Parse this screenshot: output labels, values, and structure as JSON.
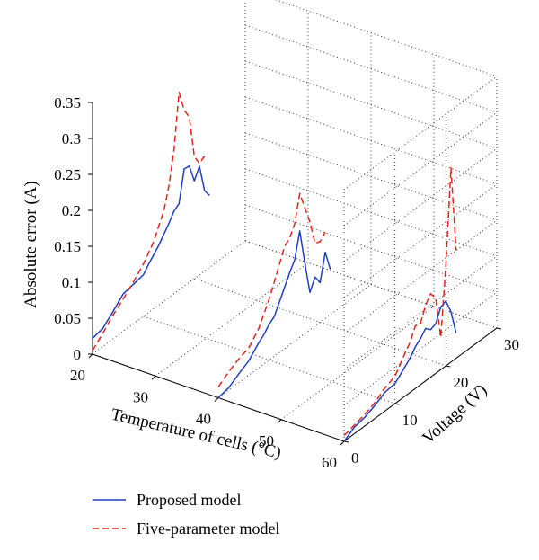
{
  "chart_data": {
    "type": "line3d",
    "title": "",
    "xlabel": "Temperature of cells (°C)",
    "ylabel": "Voltage (V)",
    "zlabel": "Absolute error (A)",
    "xlim": [
      20,
      60
    ],
    "ylim": [
      0,
      30
    ],
    "zlim": [
      0,
      0.35
    ],
    "xticks": [
      "20",
      "30",
      "40",
      "50",
      "60"
    ],
    "yticks": [
      "0",
      "10",
      "20",
      "30"
    ],
    "zticks": [
      "0",
      "0.05",
      "0.1",
      "0.15",
      "0.2",
      "0.25",
      "0.3",
      "0.35"
    ],
    "grid": true,
    "legend_position": "bottom-left",
    "series": [
      {
        "name": "Proposed model",
        "color": "#1f3fbf",
        "style": "solid",
        "groups": [
          {
            "temperature": 20,
            "points": [
              [
                0,
                0.022
              ],
              [
                2,
                0.025
              ],
              [
                4,
                0.038
              ],
              [
                6,
                0.052
              ],
              [
                8,
                0.055
              ],
              [
                10,
                0.058
              ],
              [
                11,
                0.067
              ],
              [
                12,
                0.075
              ],
              [
                13,
                0.083
              ],
              [
                14,
                0.093
              ],
              [
                15,
                0.103
              ],
              [
                16,
                0.115
              ],
              [
                17,
                0.12
              ],
              [
                18,
                0.163
              ],
              [
                19,
                0.162
              ],
              [
                20,
                0.136
              ],
              [
                21,
                0.151
              ],
              [
                22,
                0.112
              ],
              [
                23,
                0.1
              ]
            ]
          },
          {
            "temperature": 40,
            "points": [
              [
                0,
                0.0
              ],
              [
                2,
                0.003
              ],
              [
                4,
                0.012
              ],
              [
                6,
                0.02
              ],
              [
                8,
                0.035
              ],
              [
                9,
                0.041
              ],
              [
                10,
                0.05
              ],
              [
                11,
                0.055
              ],
              [
                12,
                0.07
              ],
              [
                13,
                0.085
              ],
              [
                14,
                0.1
              ],
              [
                15,
                0.113
              ],
              [
                16,
                0.148
              ],
              [
                17,
                0.098
              ],
              [
                18,
                0.052
              ],
              [
                19,
                0.068
              ],
              [
                20,
                0.055
              ],
              [
                21,
                0.092
              ],
              [
                22,
                0.063
              ]
            ]
          },
          {
            "temperature": 60,
            "points": [
              [
                0,
                0.0
              ],
              [
                2,
                0.009
              ],
              [
                4,
                0.012
              ],
              [
                6,
                0.018
              ],
              [
                8,
                0.026
              ],
              [
                10,
                0.028
              ],
              [
                12,
                0.041
              ],
              [
                13,
                0.048
              ],
              [
                14,
                0.058
              ],
              [
                15,
                0.064
              ],
              [
                16,
                0.073
              ],
              [
                17,
                0.066
              ],
              [
                18,
                0.069
              ],
              [
                19,
                0.087
              ],
              [
                20,
                0.09
              ],
              [
                21,
                0.07
              ],
              [
                22,
                0.035
              ]
            ]
          }
        ]
      },
      {
        "name": "Five-parameter model",
        "color": "#e2231a",
        "style": "dashed",
        "groups": [
          {
            "temperature": 20,
            "points": [
              [
                0,
                0.005
              ],
              [
                2,
                0.018
              ],
              [
                4,
                0.033
              ],
              [
                6,
                0.045
              ],
              [
                8,
                0.058
              ],
              [
                10,
                0.073
              ],
              [
                12,
                0.093
              ],
              [
                13,
                0.11
              ],
              [
                14,
                0.125
              ],
              [
                15,
                0.155
              ],
              [
                16,
                0.2
              ],
              [
                17,
                0.275
              ],
              [
                18,
                0.245
              ],
              [
                19,
                0.23
              ],
              [
                20,
                0.17
              ],
              [
                21,
                0.155
              ],
              [
                22,
                0.16
              ]
            ]
          },
          {
            "temperature": 40,
            "points": [
              [
                0,
                0.015
              ],
              [
                2,
                0.025
              ],
              [
                4,
                0.033
              ],
              [
                6,
                0.038
              ],
              [
                8,
                0.055
              ],
              [
                10,
                0.085
              ],
              [
                11,
                0.103
              ],
              [
                12,
                0.122
              ],
              [
                13,
                0.142
              ],
              [
                14,
                0.148
              ],
              [
                15,
                0.163
              ],
              [
                16,
                0.2
              ],
              [
                17,
                0.175
              ],
              [
                18,
                0.15
              ],
              [
                19,
                0.115
              ],
              [
                20,
                0.112
              ],
              [
                21,
                0.12
              ]
            ]
          },
          {
            "temperature": 60,
            "points": [
              [
                0,
                0.008
              ],
              [
                2,
                0.012
              ],
              [
                4,
                0.016
              ],
              [
                6,
                0.022
              ],
              [
                8,
                0.032
              ],
              [
                10,
                0.038
              ],
              [
                12,
                0.06
              ],
              [
                13,
                0.07
              ],
              [
                14,
                0.087
              ],
              [
                15,
                0.085
              ],
              [
                16,
                0.105
              ],
              [
                17,
                0.116
              ],
              [
                18,
                0.105
              ],
              [
                19,
                0.045
              ],
              [
                20,
                0.14
              ],
              [
                21,
                0.27
              ],
              [
                22,
                0.15
              ]
            ]
          }
        ]
      }
    ]
  }
}
